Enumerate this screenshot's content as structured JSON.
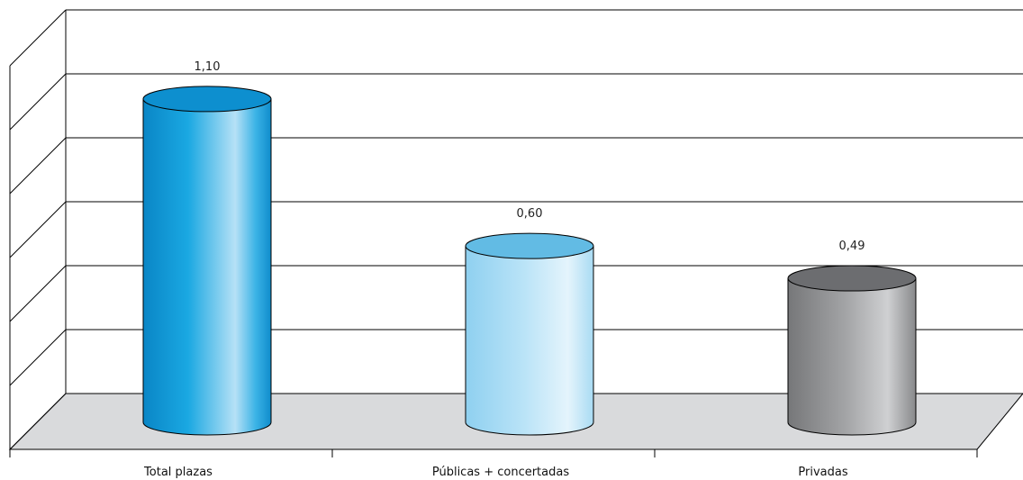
{
  "chart_data": {
    "type": "bar",
    "style": "3d-cylinder",
    "categories": [
      "Total plazas",
      "Públicas + concertadas",
      "Privadas"
    ],
    "values": [
      1.1,
      0.6,
      0.49
    ],
    "value_labels": [
      "1,10",
      "0,60",
      "0,49"
    ],
    "ylim": [
      0,
      1.2
    ],
    "y_gridlines": 6,
    "y_tick_labels": false,
    "grid": true,
    "legend": "none",
    "colors": {
      "Total plazas": "#1a9fd9",
      "Públicas + concertadas": "#aedcf3",
      "Privadas": "#8e8f91",
      "floor": "#d9dadc",
      "gridline": "#000000"
    }
  }
}
